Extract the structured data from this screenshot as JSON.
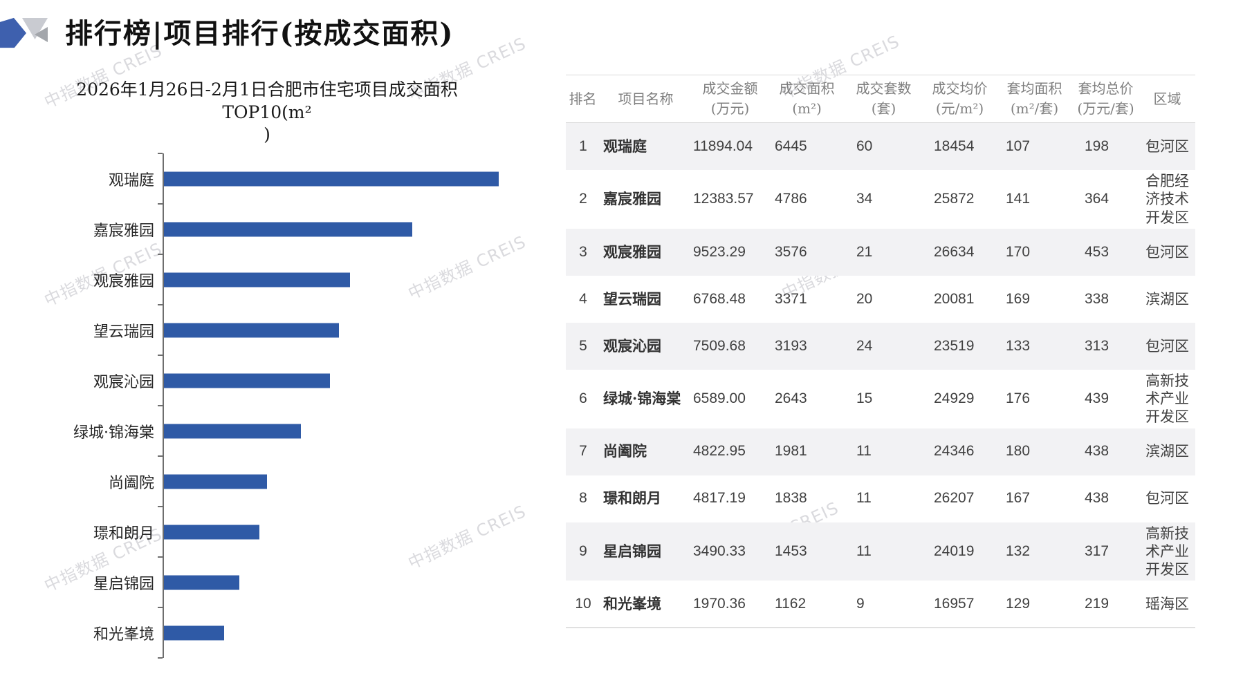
{
  "header": {
    "title": "排行榜|项目排行(按成交面积)"
  },
  "watermark": {
    "text": "中指数据 CREIS"
  },
  "chart_data": {
    "type": "bar",
    "orientation": "horizontal",
    "title": "2026年1月26日-2月1日合肥市住宅项目成交面积TOP10(m²\n)",
    "categories": [
      "观瑞庭",
      "嘉宸雅园",
      "观宸雅园",
      "望云瑞园",
      "观宸沁园",
      "绿城·锦海棠",
      "尚阖院",
      "璟和朗月",
      "星启锦园",
      "和光峯境"
    ],
    "values": [
      6445,
      4786,
      3576,
      3371,
      3193,
      2643,
      1981,
      1838,
      1453,
      1162
    ],
    "xlabel": "",
    "ylabel": "",
    "xlim": [
      0,
      6445
    ],
    "unit": "m²",
    "bar_color": "#2f5aa6",
    "grid": false,
    "legend": false,
    "value_labels_shown": false
  },
  "table": {
    "columns": [
      {
        "key": "rank",
        "label": "排名"
      },
      {
        "key": "name",
        "label": "项目名称"
      },
      {
        "key": "amount",
        "label": "成交金额\n(万元)"
      },
      {
        "key": "area",
        "label": "成交面积\n(m²)"
      },
      {
        "key": "units",
        "label": "成交套数\n(套)"
      },
      {
        "key": "avg_price",
        "label": "成交均价\n(元/m²)"
      },
      {
        "key": "avg_area",
        "label": "套均面积\n(m²/套)"
      },
      {
        "key": "avg_total",
        "label": "套均总价\n(万元/套)"
      },
      {
        "key": "district",
        "label": "区域"
      }
    ],
    "rows": [
      [
        "1",
        "观瑞庭",
        "11894.04",
        "6445",
        "60",
        "18454",
        "107",
        "198",
        "包河区"
      ],
      [
        "2",
        "嘉宸雅园",
        "12383.57",
        "4786",
        "34",
        "25872",
        "141",
        "364",
        "合肥经济技术开发区"
      ],
      [
        "3",
        "观宸雅园",
        "9523.29",
        "3576",
        "21",
        "26634",
        "170",
        "453",
        "包河区"
      ],
      [
        "4",
        "望云瑞园",
        "6768.48",
        "3371",
        "20",
        "20081",
        "169",
        "338",
        "滨湖区"
      ],
      [
        "5",
        "观宸沁园",
        "7509.68",
        "3193",
        "24",
        "23519",
        "133",
        "313",
        "包河区"
      ],
      [
        "6",
        "绿城·锦海棠",
        "6589.00",
        "2643",
        "15",
        "24929",
        "176",
        "439",
        "高新技术产业开发区"
      ],
      [
        "7",
        "尚阖院",
        "4822.95",
        "1981",
        "11",
        "24346",
        "180",
        "438",
        "滨湖区"
      ],
      [
        "8",
        "璟和朗月",
        "4817.19",
        "1838",
        "11",
        "26207",
        "167",
        "438",
        "包河区"
      ],
      [
        "9",
        "星启锦园",
        "3490.33",
        "1453",
        "11",
        "24019",
        "132",
        "317",
        "高新技术产业开发区"
      ],
      [
        "10",
        "和光峯境",
        "1970.36",
        "1162",
        "9",
        "16957",
        "129",
        "219",
        "瑶海区"
      ]
    ]
  },
  "colors": {
    "bar_blue": "#2f5aa6",
    "logo_blue": "#3e60ae",
    "stripe_gray": "#f2f2f4",
    "header_text_gray": "#7f7f7f",
    "border_light": "#d9d9d9",
    "watermark_gray": "#c5c5ca"
  }
}
